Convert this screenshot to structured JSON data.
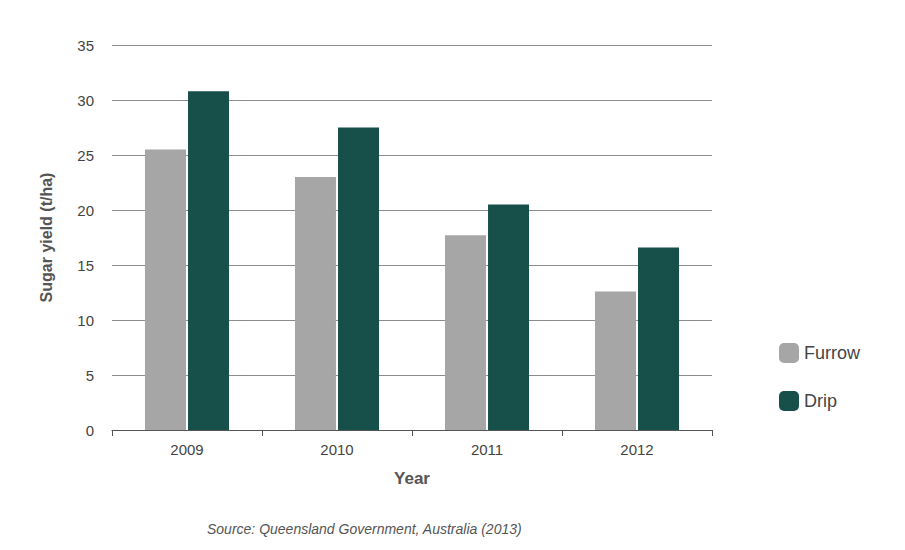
{
  "chart_data": {
    "type": "bar",
    "categories": [
      "2009",
      "2010",
      "2011",
      "2012"
    ],
    "series": [
      {
        "name": "Furrow",
        "color": "#a6a6a6",
        "values": [
          25.5,
          23,
          17.7,
          12.6
        ]
      },
      {
        "name": "Drip",
        "color": "#174f4b",
        "values": [
          30.8,
          27.5,
          20.5,
          16.6
        ]
      }
    ],
    "xlabel": "Year",
    "ylabel": "Sugar yield (t/ha)",
    "ylim": [
      0,
      35
    ],
    "yticks": [
      0,
      5,
      10,
      15,
      20,
      25,
      30,
      35
    ],
    "grid": true,
    "legend": "right",
    "annotation": "Source: Queensland Government, Australia (2013)"
  }
}
